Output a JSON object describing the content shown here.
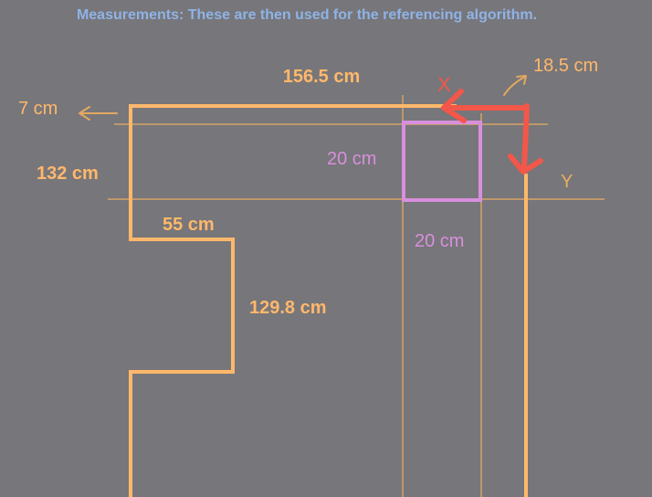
{
  "title": "Measurements: These are then used for the referencing algorithm.",
  "labels": {
    "top_width": "156.5 cm",
    "left_offset": "7 cm",
    "right_offset": "18.5 cm",
    "upper_height": "132 cm",
    "box_width_label": "20 cm",
    "box_height_label": "20 cm",
    "step_width": "55 cm",
    "step_height": "129.8 cm",
    "axis_x": "X",
    "axis_y": "Y"
  },
  "colors": {
    "background": "#77767a",
    "outline": "#ffb86b",
    "guide": "#e9ae62",
    "box": "#d88fde",
    "axis": "#f2574a",
    "title": "#8fb3e6",
    "annotation_arrow": "#e3a862"
  }
}
